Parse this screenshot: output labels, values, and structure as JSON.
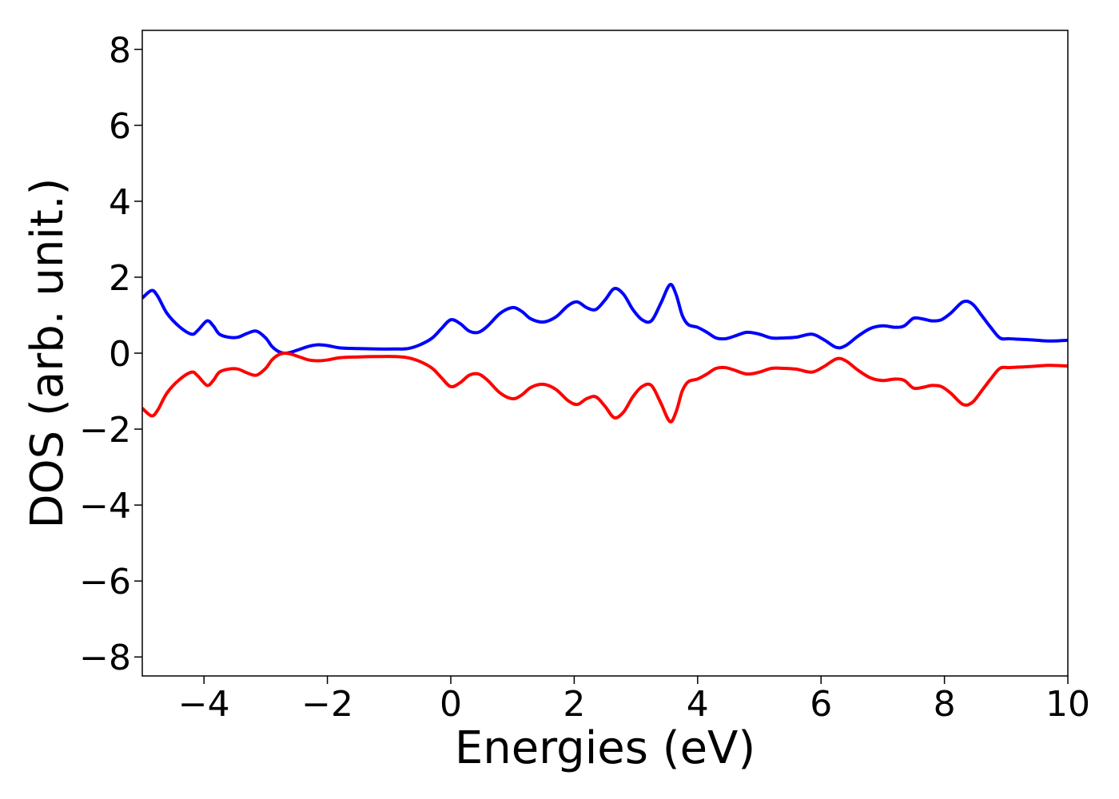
{
  "chart_data": {
    "type": "line",
    "xlabel": "Energies (eV)",
    "ylabel": "DOS (arb. unit.)",
    "xlim": [
      -5,
      10
    ],
    "ylim": [
      -8.5,
      8.5
    ],
    "x_ticks": [
      {
        "value": -4,
        "label": "−4"
      },
      {
        "value": -2,
        "label": "−2"
      },
      {
        "value": 0,
        "label": "0"
      },
      {
        "value": 2,
        "label": "2"
      },
      {
        "value": 4,
        "label": "4"
      },
      {
        "value": 6,
        "label": "6"
      },
      {
        "value": 8,
        "label": "8"
      },
      {
        "value": 10,
        "label": "10"
      }
    ],
    "y_ticks": [
      {
        "value": 8,
        "label": "8"
      },
      {
        "value": 6,
        "label": "6"
      },
      {
        "value": 4,
        "label": "4"
      },
      {
        "value": 2,
        "label": "2"
      },
      {
        "value": 0,
        "label": "0"
      },
      {
        "value": -2,
        "label": "−2"
      },
      {
        "value": -4,
        "label": "−4"
      },
      {
        "value": -6,
        "label": "−6"
      },
      {
        "value": -8,
        "label": "−8"
      }
    ],
    "grid": false,
    "legend": "none",
    "series": [
      {
        "color": "#0000ff",
        "x": [
          -5.0,
          -4.85,
          -4.75,
          -4.6,
          -4.4,
          -4.2,
          -4.1,
          -3.95,
          -3.85,
          -3.75,
          -3.6,
          -3.45,
          -3.3,
          -3.15,
          -3.0,
          -2.9,
          -2.8,
          -2.7,
          -2.6,
          -2.45,
          -2.3,
          -2.15,
          -2.0,
          -1.8,
          -1.5,
          -1.2,
          -0.9,
          -0.7,
          -0.5,
          -0.3,
          -0.15,
          0.0,
          0.15,
          0.3,
          0.45,
          0.6,
          0.8,
          1.0,
          1.15,
          1.3,
          1.5,
          1.7,
          1.9,
          2.05,
          2.2,
          2.35,
          2.5,
          2.65,
          2.8,
          2.95,
          3.1,
          3.25,
          3.4,
          3.55,
          3.65,
          3.75,
          3.85,
          4.0,
          4.15,
          4.3,
          4.45,
          4.6,
          4.8,
          5.0,
          5.2,
          5.4,
          5.6,
          5.85,
          6.05,
          6.25,
          6.4,
          6.6,
          6.8,
          7.0,
          7.2,
          7.35,
          7.5,
          7.65,
          7.8,
          7.95,
          8.1,
          8.3,
          8.45,
          8.6,
          8.75,
          8.9,
          9.05,
          9.3,
          9.5,
          9.7,
          10.0
        ],
        "y": [
          1.45,
          1.65,
          1.5,
          1.05,
          0.7,
          0.5,
          0.6,
          0.85,
          0.72,
          0.5,
          0.42,
          0.42,
          0.52,
          0.58,
          0.4,
          0.18,
          0.05,
          0.0,
          0.02,
          0.1,
          0.18,
          0.22,
          0.2,
          0.14,
          0.12,
          0.11,
          0.11,
          0.12,
          0.22,
          0.4,
          0.65,
          0.88,
          0.78,
          0.58,
          0.55,
          0.72,
          1.05,
          1.2,
          1.1,
          0.9,
          0.82,
          0.95,
          1.25,
          1.35,
          1.2,
          1.15,
          1.4,
          1.7,
          1.55,
          1.15,
          0.88,
          0.85,
          1.3,
          1.8,
          1.55,
          1.0,
          0.75,
          0.68,
          0.55,
          0.4,
          0.38,
          0.45,
          0.55,
          0.5,
          0.4,
          0.4,
          0.42,
          0.5,
          0.35,
          0.15,
          0.2,
          0.45,
          0.65,
          0.72,
          0.68,
          0.72,
          0.92,
          0.9,
          0.85,
          0.88,
          1.05,
          1.35,
          1.3,
          1.0,
          0.68,
          0.4,
          0.38,
          0.36,
          0.34,
          0.32,
          0.34
        ]
      },
      {
        "color": "#ff0000",
        "x": [
          -5.0,
          -4.85,
          -4.75,
          -4.6,
          -4.4,
          -4.2,
          -4.1,
          -3.95,
          -3.85,
          -3.75,
          -3.6,
          -3.45,
          -3.3,
          -3.15,
          -3.0,
          -2.9,
          -2.8,
          -2.7,
          -2.6,
          -2.45,
          -2.3,
          -2.15,
          -2.0,
          -1.8,
          -1.5,
          -1.2,
          -0.9,
          -0.7,
          -0.5,
          -0.3,
          -0.15,
          0.0,
          0.15,
          0.3,
          0.45,
          0.6,
          0.8,
          1.0,
          1.15,
          1.3,
          1.5,
          1.7,
          1.9,
          2.05,
          2.2,
          2.35,
          2.5,
          2.65,
          2.8,
          2.95,
          3.1,
          3.25,
          3.4,
          3.55,
          3.65,
          3.75,
          3.85,
          4.0,
          4.15,
          4.3,
          4.45,
          4.6,
          4.8,
          5.0,
          5.2,
          5.4,
          5.6,
          5.85,
          6.05,
          6.25,
          6.4,
          6.6,
          6.8,
          7.0,
          7.2,
          7.35,
          7.5,
          7.65,
          7.8,
          7.95,
          8.1,
          8.3,
          8.45,
          8.6,
          8.75,
          8.9,
          9.05,
          9.3,
          9.5,
          9.7,
          10.0
        ],
        "y": [
          -1.45,
          -1.65,
          -1.5,
          -1.05,
          -0.7,
          -0.5,
          -0.6,
          -0.85,
          -0.72,
          -0.5,
          -0.42,
          -0.42,
          -0.52,
          -0.58,
          -0.4,
          -0.18,
          -0.05,
          0.0,
          -0.02,
          -0.1,
          -0.18,
          -0.2,
          -0.18,
          -0.12,
          -0.1,
          -0.09,
          -0.09,
          -0.12,
          -0.22,
          -0.4,
          -0.65,
          -0.88,
          -0.78,
          -0.58,
          -0.55,
          -0.72,
          -1.05,
          -1.2,
          -1.1,
          -0.9,
          -0.82,
          -0.95,
          -1.25,
          -1.35,
          -1.2,
          -1.15,
          -1.4,
          -1.7,
          -1.55,
          -1.15,
          -0.88,
          -0.85,
          -1.3,
          -1.8,
          -1.55,
          -1.0,
          -0.75,
          -0.68,
          -0.55,
          -0.4,
          -0.38,
          -0.45,
          -0.55,
          -0.5,
          -0.4,
          -0.4,
          -0.42,
          -0.5,
          -0.35,
          -0.15,
          -0.2,
          -0.45,
          -0.65,
          -0.72,
          -0.68,
          -0.72,
          -0.92,
          -0.9,
          -0.85,
          -0.88,
          -1.05,
          -1.35,
          -1.3,
          -1.0,
          -0.68,
          -0.4,
          -0.38,
          -0.36,
          -0.34,
          -0.32,
          -0.34
        ]
      }
    ]
  }
}
